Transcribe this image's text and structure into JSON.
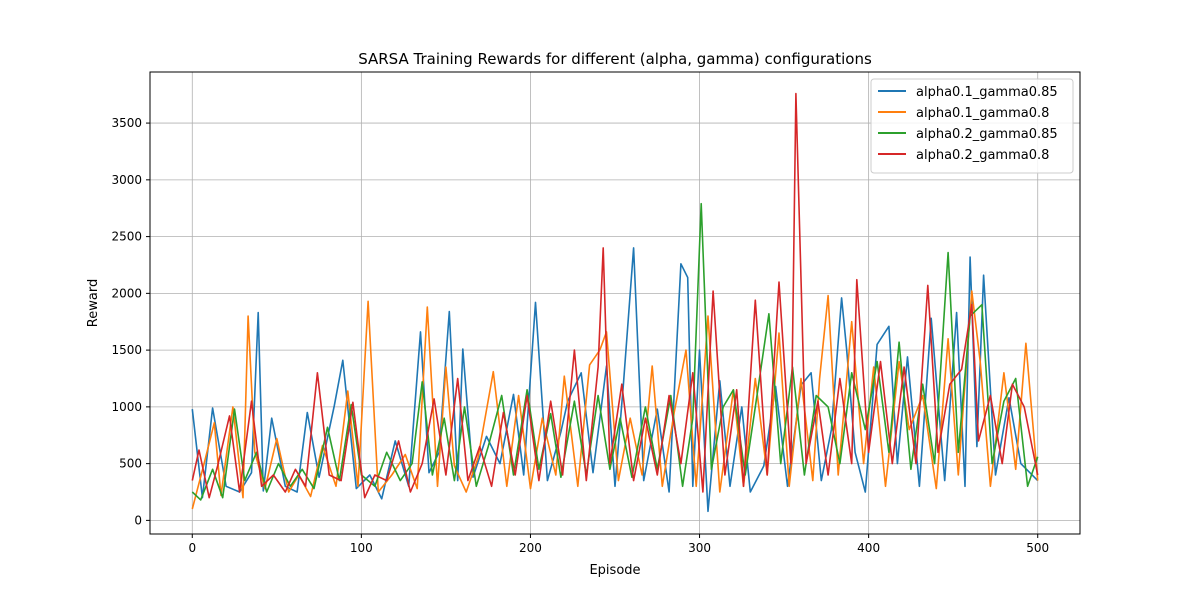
{
  "chart_data": {
    "type": "line",
    "title": "SARSA Training Rewards for different (alpha, gamma) configurations",
    "xlabel": "Episode",
    "ylabel": "Reward",
    "xlim": [
      -25,
      525
    ],
    "ylim": [
      -120,
      3950
    ],
    "xticks": [
      0,
      100,
      200,
      300,
      400,
      500
    ],
    "yticks": [
      0,
      500,
      1000,
      1500,
      2000,
      2500,
      3000,
      3500
    ],
    "grid": true,
    "legend_position": "top-right",
    "series": [
      {
        "name": "alpha0.1_gamma0.85",
        "color": "#1f77b4",
        "x": [
          0,
          6,
          12,
          20,
          28,
          35,
          39,
          42,
          47,
          55,
          62,
          68,
          75,
          84,
          89,
          97,
          105,
          112,
          120,
          128,
          135,
          140,
          146,
          152,
          157,
          160,
          166,
          174,
          182,
          190,
          196,
          203,
          210,
          218,
          222,
          230,
          237,
          245,
          250,
          255,
          261,
          267,
          275,
          282,
          289,
          293,
          296,
          300,
          305,
          312,
          318,
          325,
          330,
          338,
          345,
          352,
          360,
          366,
          372,
          378,
          384,
          387,
          392,
          398,
          405,
          412,
          417,
          423,
          430,
          437,
          445,
          452,
          457,
          460,
          464,
          468,
          475,
          483,
          490,
          500
        ],
        "y": [
          980,
          200,
          990,
          300,
          250,
          420,
          1830,
          260,
          900,
          300,
          250,
          950,
          380,
          1010,
          1410,
          280,
          400,
          190,
          700,
          300,
          1660,
          420,
          600,
          1840,
          350,
          1510,
          380,
          740,
          500,
          1110,
          400,
          1920,
          350,
          780,
          1050,
          1300,
          420,
          1360,
          300,
          1210,
          2400,
          350,
          980,
          250,
          2260,
          2140,
          300,
          1500,
          80,
          1230,
          300,
          1000,
          250,
          480,
          1180,
          300,
          1190,
          1300,
          350,
          800,
          1960,
          1500,
          600,
          250,
          1550,
          1710,
          500,
          1440,
          300,
          1780,
          350,
          1830,
          300,
          2320,
          650,
          2160,
          400,
          1080,
          500,
          350
        ]
      },
      {
        "name": "alpha0.1_gamma0.8",
        "color": "#ff7f0e",
        "x": [
          0,
          7,
          13,
          17,
          24,
          30,
          33,
          37,
          43,
          50,
          57,
          63,
          70,
          77,
          85,
          92,
          98,
          104,
          110,
          118,
          126,
          133,
          139,
          145,
          150,
          155,
          162,
          169,
          178,
          186,
          193,
          200,
          207,
          215,
          220,
          228,
          235,
          241,
          245,
          252,
          259,
          266,
          272,
          278,
          285,
          292,
          298,
          305,
          312,
          320,
          326,
          333,
          340,
          347,
          353,
          360,
          367,
          371,
          376,
          382,
          390,
          397,
          403,
          410,
          418,
          424,
          432,
          440,
          447,
          453,
          461,
          466,
          472,
          480,
          487,
          493,
          500
        ],
        "y": [
          100,
          500,
          860,
          220,
          1000,
          200,
          1800,
          600,
          280,
          720,
          250,
          400,
          210,
          660,
          300,
          1140,
          300,
          1930,
          250,
          400,
          580,
          280,
          1880,
          300,
          1350,
          480,
          250,
          550,
          1310,
          300,
          1100,
          280,
          900,
          400,
          1270,
          300,
          1370,
          1500,
          1660,
          350,
          900,
          400,
          1360,
          300,
          950,
          1500,
          300,
          1800,
          250,
          1150,
          300,
          1250,
          400,
          1650,
          300,
          1250,
          350,
          1250,
          1980,
          400,
          1750,
          500,
          1350,
          300,
          1400,
          800,
          1100,
          280,
          1600,
          400,
          2020,
          1400,
          300,
          1300,
          450,
          1560,
          350
        ]
      },
      {
        "name": "alpha0.2_gamma0.85",
        "color": "#2ca02c",
        "x": [
          0,
          5,
          12,
          18,
          25,
          31,
          38,
          44,
          51,
          58,
          65,
          72,
          80,
          87,
          94,
          100,
          108,
          115,
          123,
          130,
          136,
          142,
          149,
          155,
          161,
          168,
          175,
          183,
          190,
          198,
          205,
          212,
          218,
          226,
          233,
          240,
          247,
          253,
          260,
          268,
          275,
          283,
          290,
          296,
          301,
          307,
          314,
          320,
          327,
          334,
          341,
          348,
          355,
          362,
          369,
          376,
          383,
          390,
          398,
          405,
          412,
          418,
          425,
          432,
          439,
          447,
          453,
          460,
          467,
          473,
          480,
          487,
          494,
          500
        ],
        "y": [
          250,
          180,
          450,
          200,
          980,
          350,
          600,
          250,
          500,
          300,
          450,
          280,
          820,
          350,
          1020,
          400,
          300,
          600,
          350,
          500,
          1220,
          400,
          900,
          350,
          1000,
          300,
          650,
          1100,
          400,
          1150,
          450,
          940,
          380,
          1050,
          400,
          1100,
          450,
          900,
          380,
          1000,
          450,
          1100,
          300,
          900,
          2790,
          450,
          1000,
          1150,
          400,
          1100,
          1820,
          500,
          1350,
          400,
          1100,
          1000,
          500,
          1300,
          800,
          1400,
          600,
          1570,
          450,
          1200,
          500,
          2360,
          600,
          1800,
          1900,
          500,
          1050,
          1250,
          300,
          560
        ]
      },
      {
        "name": "alpha0.2_gamma0.8",
        "color": "#d62728",
        "x": [
          0,
          4,
          10,
          15,
          22,
          28,
          35,
          41,
          48,
          55,
          61,
          67,
          74,
          81,
          88,
          95,
          102,
          108,
          115,
          122,
          129,
          136,
          143,
          150,
          157,
          163,
          170,
          177,
          184,
          191,
          198,
          205,
          212,
          219,
          226,
          233,
          240,
          243,
          247,
          254,
          261,
          268,
          275,
          282,
          289,
          296,
          302,
          308,
          315,
          322,
          326,
          333,
          340,
          347,
          354,
          357,
          363,
          370,
          376,
          383,
          390,
          393,
          400,
          407,
          414,
          421,
          428,
          435,
          441,
          448,
          455,
          461,
          465,
          472,
          479,
          485,
          492,
          500
        ],
        "y": [
          350,
          620,
          200,
          480,
          920,
          250,
          1050,
          300,
          400,
          250,
          450,
          300,
          1300,
          400,
          350,
          1040,
          200,
          400,
          350,
          700,
          250,
          500,
          1070,
          400,
          1250,
          350,
          650,
          300,
          950,
          400,
          1100,
          350,
          1050,
          400,
          1500,
          350,
          1350,
          2400,
          500,
          1200,
          350,
          900,
          400,
          1100,
          500,
          1300,
          250,
          2020,
          400,
          1150,
          300,
          1940,
          400,
          2100,
          500,
          3760,
          500,
          1050,
          400,
          1250,
          500,
          2120,
          600,
          1400,
          500,
          1350,
          500,
          2070,
          600,
          1200,
          1330,
          1900,
          700,
          1100,
          500,
          1200,
          1000,
          400
        ]
      }
    ]
  }
}
